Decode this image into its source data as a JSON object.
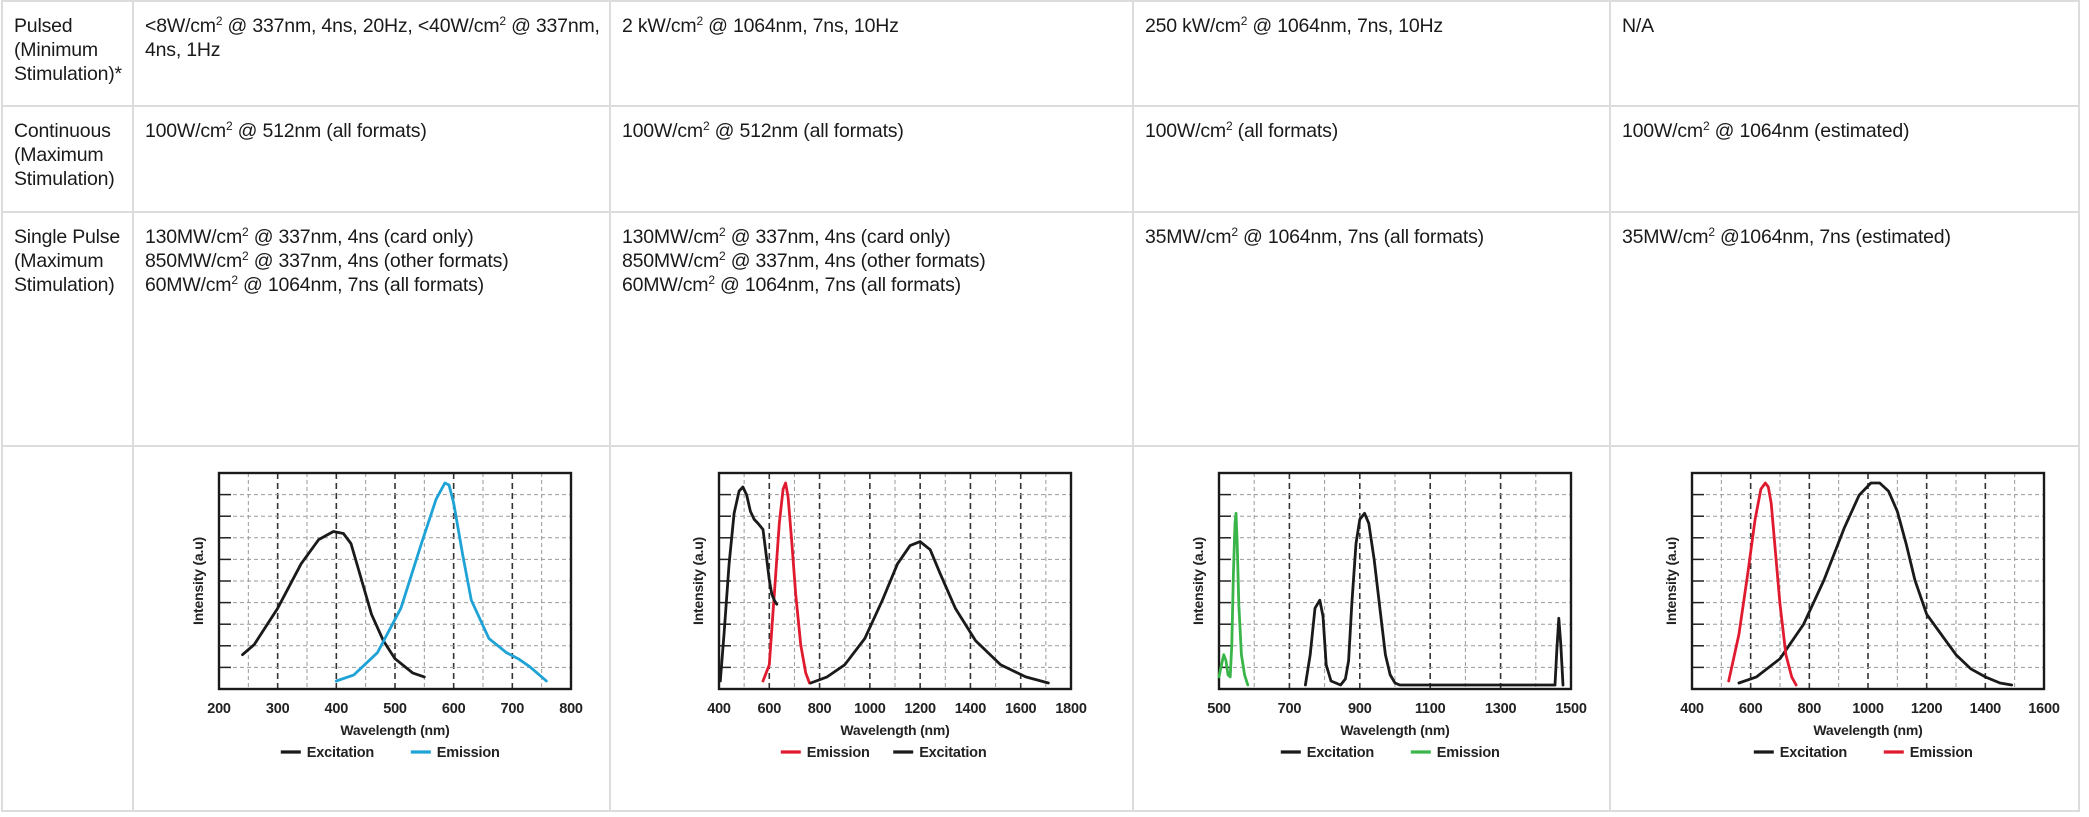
{
  "table": {
    "rows": [
      {
        "header": [
          "Pulsed",
          "(Minimum",
          "Stimulation)*"
        ],
        "cells": [
          {
            "parts": [
              "<8W/cm",
              "2",
              " @ 337nm, 4ns, 20Hz, <40W/cm",
              "2",
              " @ 337nm,"
            ],
            "cont": "4ns, 1Hz"
          },
          {
            "parts": [
              "2 kW/cm",
              "2",
              " @ 1064nm, 7ns, 10Hz"
            ]
          },
          {
            "parts": [
              "250 kW/cm",
              "2",
              " @ 1064nm, 7ns, 10Hz"
            ]
          },
          {
            "parts": [
              "N/A"
            ]
          }
        ]
      },
      {
        "header": [
          "Continuous",
          "(Maximum",
          "Stimulation)"
        ],
        "cells": [
          {
            "parts": [
              "100W/cm",
              "2",
              " @ 512nm (all formats)"
            ]
          },
          {
            "parts": [
              "100W/cm",
              "2",
              " @ 512nm (all formats)"
            ]
          },
          {
            "parts": [
              "100W/cm",
              "2",
              " (all formats)"
            ]
          },
          {
            "parts": [
              "100W/cm",
              "2",
              " @ 1064nm (estimated)"
            ]
          }
        ]
      },
      {
        "header": [
          "Single Pulse",
          "(Maximum",
          "Stimulation)"
        ],
        "cells": [
          {
            "lines": [
              [
                "130MW/cm",
                "2",
                " @ 337nm, 4ns (card only)"
              ],
              [
                "850MW/cm",
                "2",
                " @ 337nm, 4ns (other formats)"
              ],
              [
                "60MW/cm",
                "2",
                " @ 1064nm, 7ns (all formats)"
              ]
            ]
          },
          {
            "lines": [
              [
                "130MW/cm",
                "2",
                " @ 337nm, 4ns (card only)"
              ],
              [
                "850MW/cm",
                "2",
                " @ 337nm, 4ns (other formats)"
              ],
              [
                "60MW/cm",
                "2",
                " @ 1064nm, 7ns (all formats)"
              ]
            ]
          },
          {
            "parts": [
              "35MW/cm",
              "2",
              " @ 1064nm, 7ns (all formats)"
            ]
          },
          {
            "parts": [
              "35MW/cm",
              "2",
              " @1064nm, 7ns (estimated)"
            ]
          }
        ]
      }
    ]
  },
  "chart_data": [
    {
      "type": "line",
      "xlabel": "Wavelength (nm)",
      "ylabel": "Intensity (a.u)",
      "xlim": [
        200,
        800
      ],
      "ylim": [
        0,
        1
      ],
      "xticks": [
        "200",
        "300",
        "400",
        "500",
        "600",
        "700",
        "800"
      ],
      "grid": true,
      "legend_position": "bottom",
      "series": [
        {
          "name": "Excitation",
          "color": "#1a1a1a",
          "x": [
            240,
            260,
            300,
            340,
            370,
            395,
            412,
            425,
            440,
            460,
            480,
            500,
            530,
            550
          ],
          "y": [
            0.15,
            0.2,
            0.38,
            0.6,
            0.72,
            0.76,
            0.75,
            0.7,
            0.55,
            0.35,
            0.22,
            0.13,
            0.06,
            0.04
          ]
        },
        {
          "name": "Emission",
          "color": "#1fa3d6",
          "x": [
            400,
            430,
            470,
            510,
            545,
            570,
            585,
            592,
            600,
            615,
            630,
            660,
            690,
            710,
            730,
            750,
            758
          ],
          "y": [
            0.02,
            0.05,
            0.16,
            0.38,
            0.7,
            0.92,
            1.0,
            0.99,
            0.9,
            0.65,
            0.42,
            0.23,
            0.16,
            0.13,
            0.09,
            0.04,
            0.02
          ]
        }
      ]
    },
    {
      "type": "line",
      "xlabel": "Wavelength (nm)",
      "ylabel": "Intensity (a.u)",
      "xlim": [
        400,
        1800
      ],
      "ylim": [
        0,
        1
      ],
      "xticks": [
        "400",
        "600",
        "800",
        "1000",
        "1200",
        "1400",
        "1600",
        "1800"
      ],
      "grid": true,
      "legend_position": "bottom",
      "series": [
        {
          "name": "Emission",
          "color": "#e01b2f",
          "x": [
            575,
            600,
            620,
            640,
            655,
            665,
            675,
            690,
            705,
            725,
            745,
            760
          ],
          "y": [
            0.02,
            0.1,
            0.45,
            0.8,
            0.97,
            1.0,
            0.93,
            0.7,
            0.45,
            0.2,
            0.06,
            0.01
          ]
        },
        {
          "name": "Excitation",
          "color": "#1a1a1a",
          "x": [
            405,
            420,
            440,
            460,
            480,
            495,
            510,
            525,
            540,
            555,
            575,
            590,
            600,
            610,
            620,
            630
          ],
          "y": [
            0.02,
            0.25,
            0.6,
            0.85,
            0.96,
            0.98,
            0.94,
            0.86,
            0.82,
            0.8,
            0.77,
            0.62,
            0.52,
            0.45,
            0.42,
            0.4
          ]
        },
        {
          "name": "",
          "color": "#1a1a1a",
          "x": [
            765,
            830,
            900,
            980,
            1050,
            1110,
            1160,
            1200,
            1240,
            1280,
            1340,
            1420,
            1520,
            1620,
            1710
          ],
          "y": [
            0.01,
            0.04,
            0.1,
            0.23,
            0.42,
            0.6,
            0.69,
            0.71,
            0.67,
            0.55,
            0.38,
            0.22,
            0.1,
            0.04,
            0.01
          ]
        }
      ]
    },
    {
      "type": "line",
      "xlabel": "Wavelength (nm)",
      "ylabel": "Intensity (a.u)",
      "xlim": [
        500,
        1600
      ],
      "ylim": [
        0,
        1
      ],
      "xticks": [
        "500",
        "700",
        "900",
        "1100",
        "1300",
        "1500"
      ],
      "grid": true,
      "legend_position": "bottom",
      "series": [
        {
          "name": "Excitation",
          "color": "#1a1a1a",
          "x": [
            770,
            785,
            800,
            815,
            825,
            835,
            850,
            865,
            880,
            895,
            905,
            915,
            928,
            940,
            955,
            968,
            985,
            1005,
            1020,
            1035,
            1050,
            1065,
            1550,
            1556,
            1562,
            1568,
            1575
          ],
          "y": [
            0.0,
            0.15,
            0.38,
            0.42,
            0.34,
            0.1,
            0.02,
            0.01,
            0.0,
            0.03,
            0.12,
            0.4,
            0.7,
            0.82,
            0.85,
            0.8,
            0.62,
            0.35,
            0.15,
            0.05,
            0.01,
            0.0,
            0.0,
            0.18,
            0.33,
            0.2,
            0.0
          ]
        },
        {
          "name": "Emission",
          "color": "#3ab54a",
          "x": [
            500,
            505,
            515,
            522,
            528,
            535,
            540,
            545,
            550,
            553,
            557,
            562,
            570,
            580,
            590
          ],
          "y": [
            0.04,
            0.08,
            0.15,
            0.12,
            0.05,
            0.04,
            0.2,
            0.55,
            0.8,
            0.85,
            0.7,
            0.4,
            0.15,
            0.05,
            0.0
          ]
        }
      ]
    },
    {
      "type": "line",
      "xlabel": "Wavelength (nm)",
      "ylabel": "Intensity (a.u)",
      "xlim": [
        400,
        1600
      ],
      "ylim": [
        0,
        1
      ],
      "xticks": [
        "400",
        "600",
        "800",
        "1000",
        "1200",
        "1400",
        "1600"
      ],
      "grid": true,
      "legend_position": "bottom",
      "series": [
        {
          "name": "Excitation",
          "color": "#1a1a1a",
          "x": [
            560,
            620,
            700,
            780,
            850,
            920,
            970,
            1010,
            1040,
            1070,
            1100,
            1130,
            1160,
            1200,
            1250,
            1300,
            1350,
            1400,
            1450,
            1490
          ],
          "y": [
            0.01,
            0.04,
            0.13,
            0.3,
            0.52,
            0.78,
            0.94,
            1.0,
            1.0,
            0.96,
            0.86,
            0.7,
            0.52,
            0.35,
            0.25,
            0.15,
            0.08,
            0.04,
            0.01,
            0.0
          ]
        },
        {
          "name": "Emission",
          "color": "#e01b2f",
          "x": [
            525,
            560,
            590,
            615,
            635,
            650,
            660,
            670,
            685,
            700,
            720,
            740,
            755
          ],
          "y": [
            0.02,
            0.25,
            0.55,
            0.82,
            0.97,
            1.0,
            0.98,
            0.9,
            0.65,
            0.4,
            0.15,
            0.04,
            0.0
          ]
        }
      ]
    }
  ],
  "legends": [
    [
      {
        "label": "Excitation",
        "color": "#1a1a1a"
      },
      {
        "label": "Emission",
        "color": "#1fa3d6"
      }
    ],
    [
      {
        "label": "Emission",
        "color": "#e01b2f"
      },
      {
        "label": "Excitation",
        "color": "#1a1a1a"
      }
    ],
    [
      {
        "label": "Excitation",
        "color": "#1a1a1a"
      },
      {
        "label": "Emission",
        "color": "#3ab54a"
      }
    ],
    [
      {
        "label": "Excitation",
        "color": "#1a1a1a"
      },
      {
        "label": "Emission",
        "color": "#e01b2f"
      }
    ]
  ]
}
